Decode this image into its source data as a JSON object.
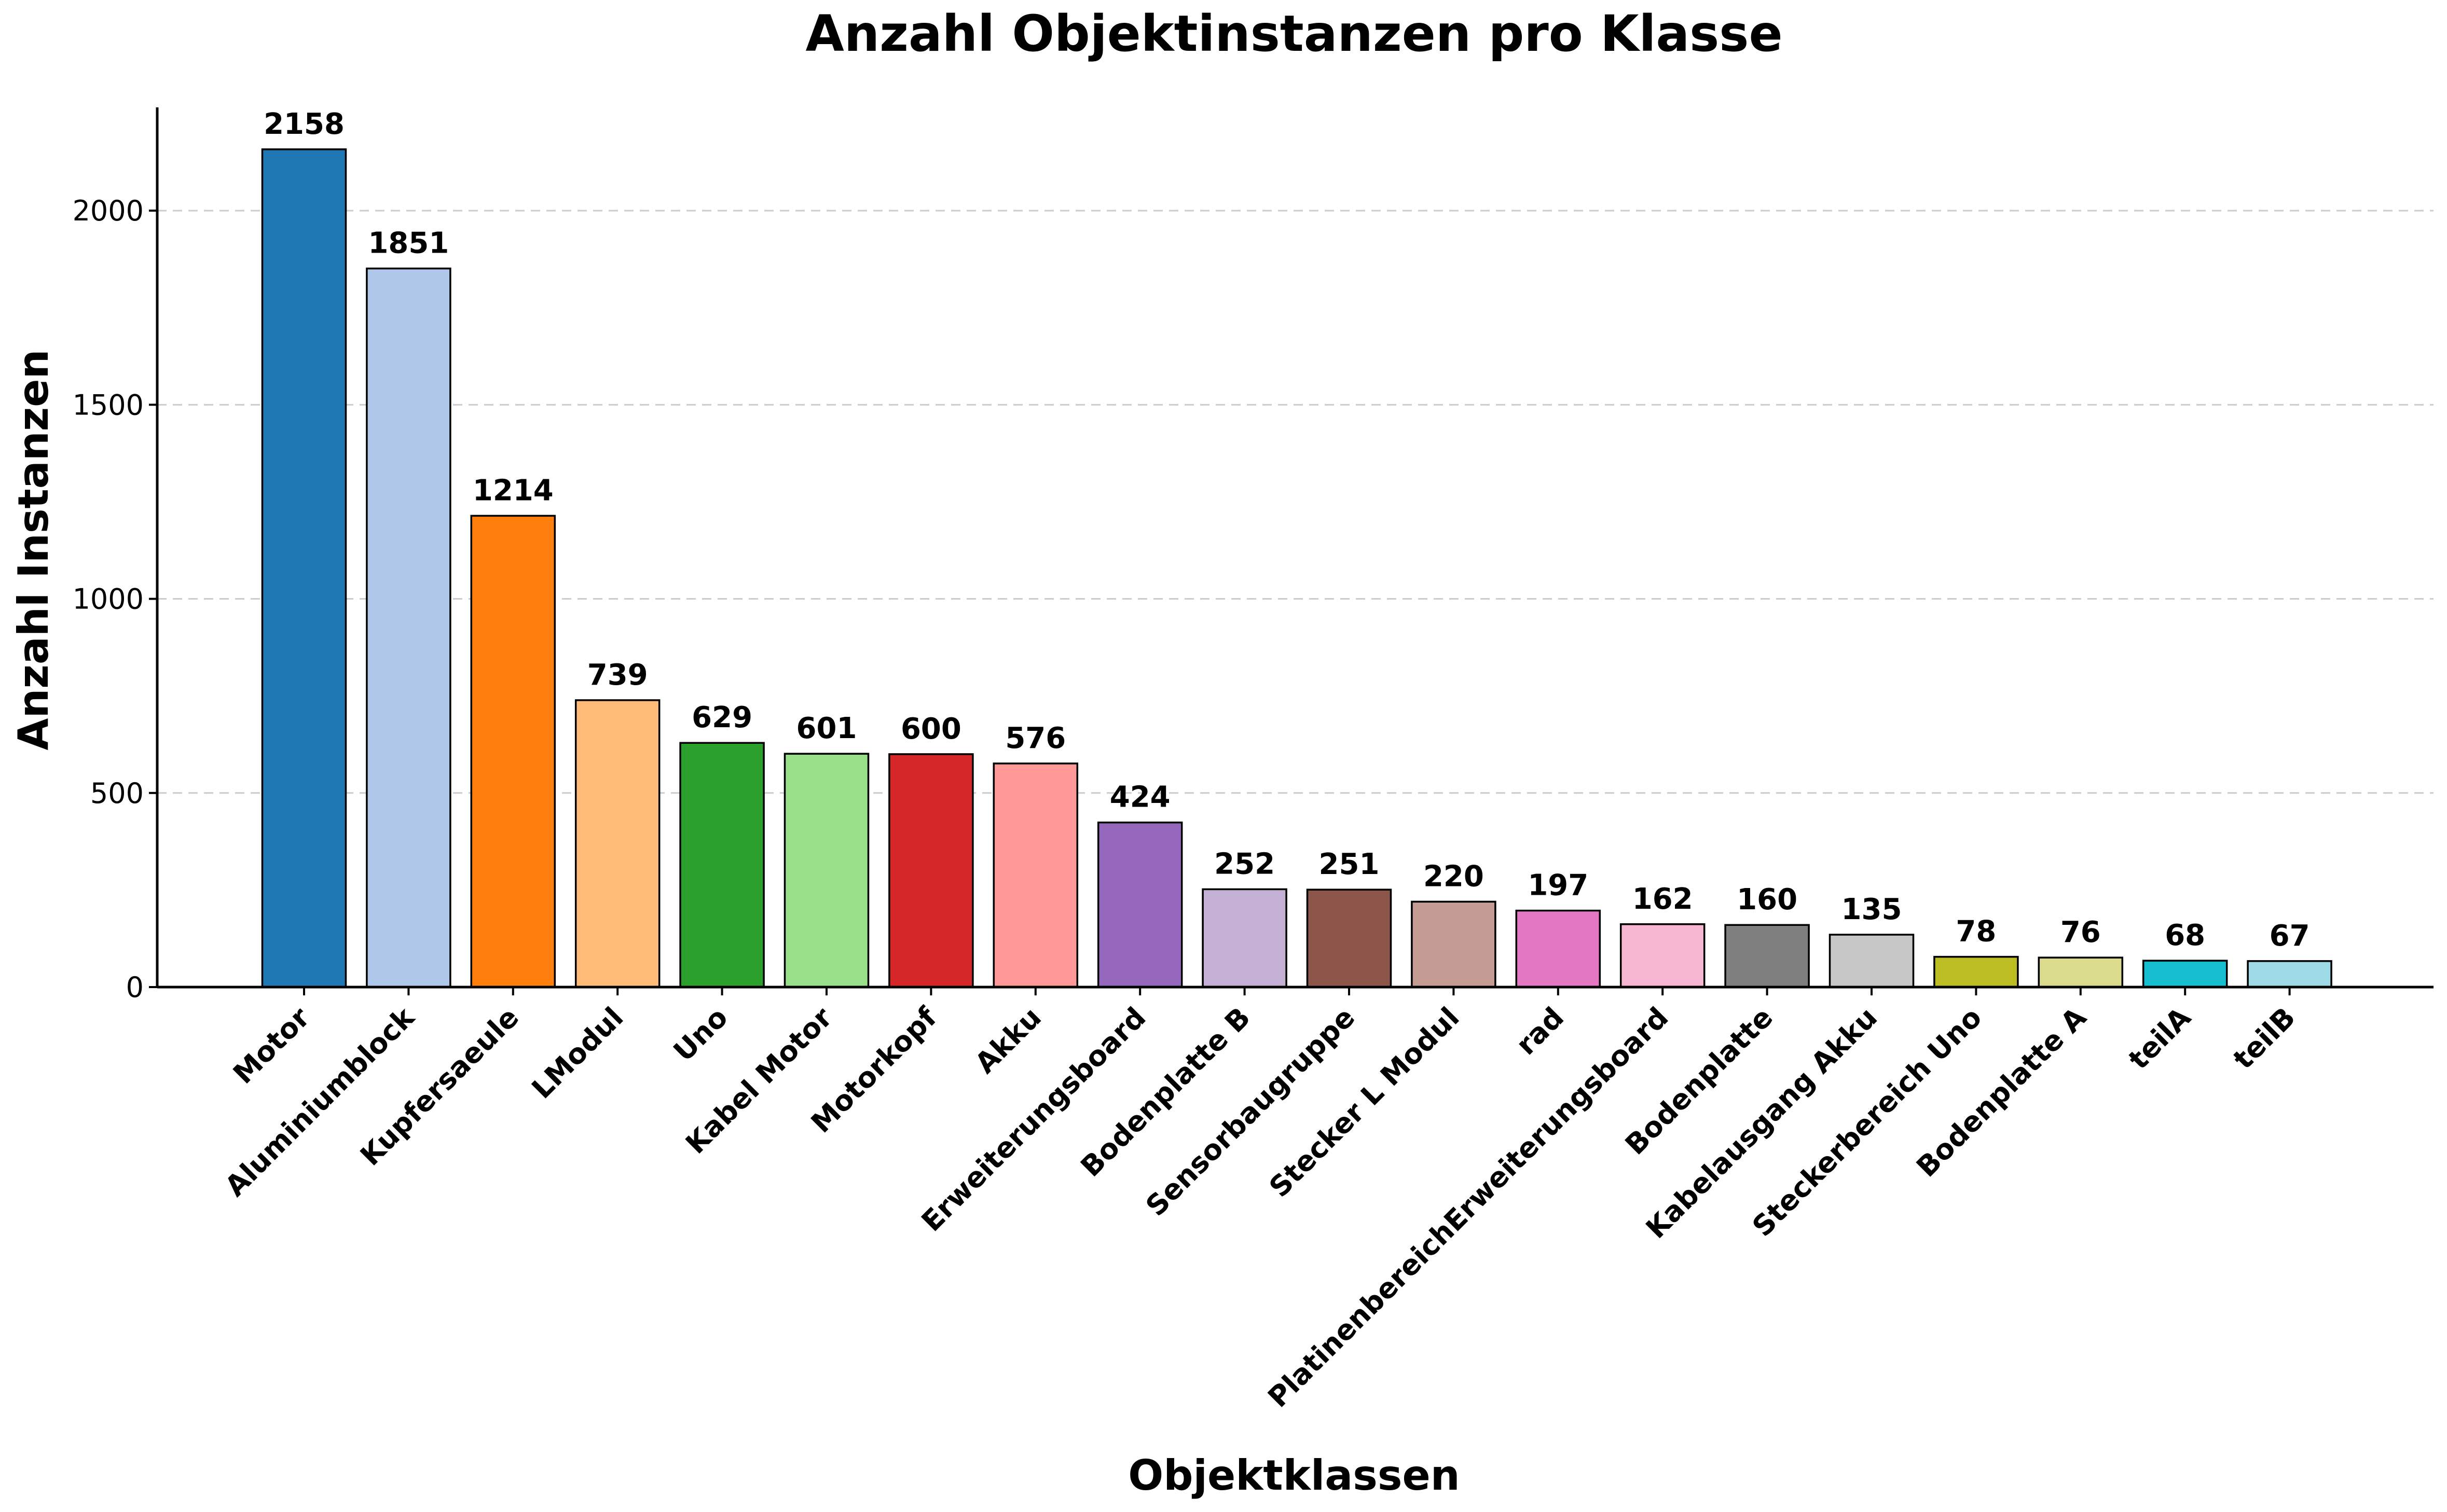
{
  "chart_data": {
    "type": "bar",
    "title": "Anzahl Objektinstanzen pro Klasse",
    "xlabel": "Objektklassen",
    "ylabel": "Anzahl Instanzen",
    "ylim": [
      0,
      2266
    ],
    "yticks": [
      0,
      500,
      1000,
      1500,
      2000
    ],
    "grid": "y-dashed",
    "categories": [
      "Motor",
      "Aluminiumblock",
      "Kupfersaeule",
      "LModul",
      "Uno",
      "Kabel Motor",
      "Motorkopf",
      "Akku",
      "Erweiterungsboard",
      "Bodenplatte B",
      "Sensorbaugruppe",
      "Stecker L Modul",
      "rad",
      "PlatinenbereichErweiterungsboard",
      "Bodenplatte",
      "Kabelausgang Akku",
      "Steckerbereich Uno",
      "Bodenplatte A",
      "teilA",
      "teilB"
    ],
    "values": [
      2158,
      1851,
      1214,
      739,
      629,
      601,
      600,
      576,
      424,
      252,
      251,
      220,
      197,
      162,
      160,
      135,
      78,
      76,
      68,
      67
    ],
    "value_labels": [
      "2158",
      "1851",
      "1214",
      "739",
      "629",
      "601",
      "600",
      "576",
      "424",
      "252",
      "251",
      "220",
      "197",
      "162",
      "160",
      "135",
      "78",
      "76",
      "68",
      "67"
    ],
    "colors": [
      "#1f77b4",
      "#aec7e8",
      "#ff7f0e",
      "#ffbb78",
      "#2ca02c",
      "#98df8a",
      "#d62728",
      "#ff9896",
      "#9467bd",
      "#c5b0d5",
      "#8c564b",
      "#c49c94",
      "#e377c2",
      "#f7b6d2",
      "#7f7f7f",
      "#c7c7c7",
      "#bcbd22",
      "#dbdb8d",
      "#17becf",
      "#9edae5"
    ]
  }
}
